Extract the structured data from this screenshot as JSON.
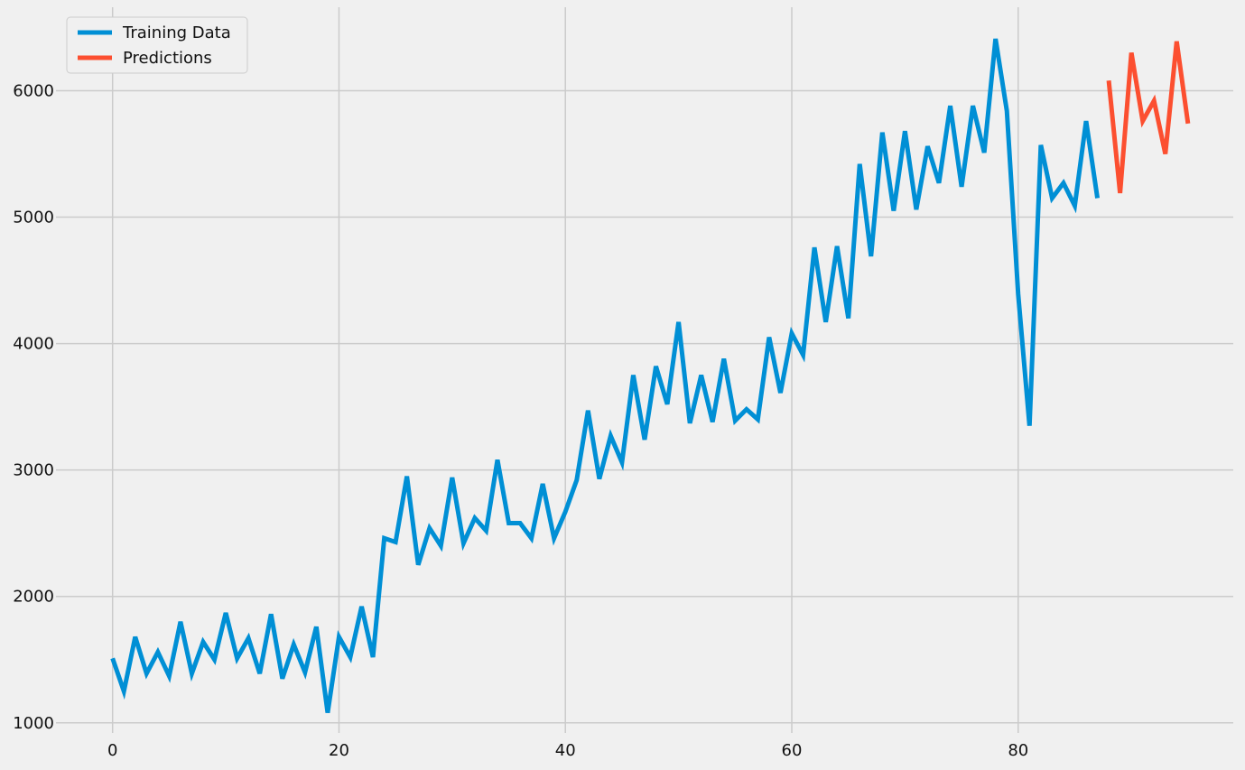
{
  "chart_data": {
    "type": "line",
    "title": "",
    "xlabel": "",
    "ylabel": "",
    "xlim": [
      -5,
      99
    ],
    "ylim": [
      920,
      6660
    ],
    "grid": true,
    "legend_position": "top-left",
    "x_ticks": [
      0,
      20,
      40,
      60,
      80
    ],
    "y_ticks": [
      1000,
      2000,
      3000,
      4000,
      5000,
      6000
    ],
    "x_tick_labels": [
      "0",
      "20",
      "40",
      "60",
      "80"
    ],
    "y_tick_labels": [
      "1000",
      "2000",
      "3000",
      "4000",
      "5000",
      "6000"
    ],
    "series": [
      {
        "name": "Training Data",
        "color": "#008fd5",
        "x_start": 0,
        "values": [
          1510,
          1250,
          1680,
          1390,
          1560,
          1370,
          1800,
          1390,
          1640,
          1500,
          1870,
          1510,
          1670,
          1390,
          1860,
          1350,
          1620,
          1400,
          1760,
          1080,
          1680,
          1520,
          1920,
          1520,
          2460,
          2430,
          2950,
          2250,
          2540,
          2400,
          2940,
          2420,
          2620,
          2520,
          3080,
          2580,
          2580,
          2460,
          2890,
          2460,
          2670,
          2920,
          3470,
          2930,
          3270,
          3060,
          3750,
          3240,
          3820,
          3520,
          4170,
          3370,
          3750,
          3380,
          3880,
          3390,
          3480,
          3400,
          4050,
          3610,
          4080,
          3910,
          4760,
          4170,
          4770,
          4200,
          5420,
          4690,
          5670,
          5050,
          5680,
          5060,
          5560,
          5270,
          5880,
          5240,
          5880,
          5510,
          6410,
          5840,
          4390,
          3350,
          5570,
          5150,
          5270,
          5090,
          5760,
          5150
        ]
      },
      {
        "name": "Predictions",
        "color": "#fc4f30",
        "x_start": 88,
        "values": [
          6080,
          5190,
          6300,
          5760,
          5920,
          5500,
          6390,
          5740
        ]
      }
    ]
  }
}
